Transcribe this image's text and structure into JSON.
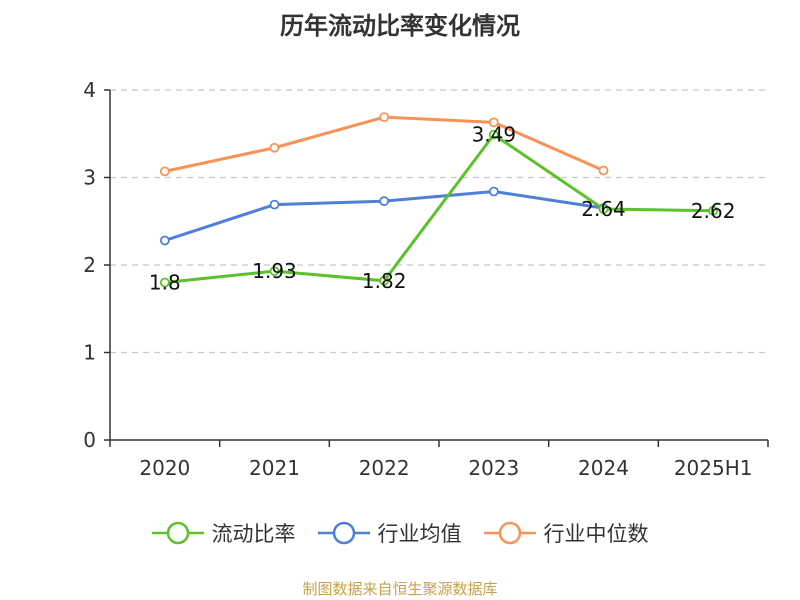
{
  "chart_data": {
    "type": "line",
    "title": "历年流动比率变化情况",
    "categories": [
      "2020",
      "2021",
      "2022",
      "2023",
      "2024",
      "2025H1"
    ],
    "ylim": [
      0,
      4
    ],
    "yticks": [
      "0",
      "1",
      "2",
      "3",
      "4"
    ],
    "grid": "horizontal dashed",
    "legend_position": "bottom",
    "series": [
      {
        "name": "流动比率",
        "color": "#5cc12a",
        "values": [
          1.8,
          1.93,
          1.82,
          3.49,
          2.64,
          2.62
        ],
        "labels": [
          "1.8",
          "1.93",
          "1.82",
          "3.49",
          "2.64",
          "2.62"
        ]
      },
      {
        "name": "行业均值",
        "color": "#4e7fd9",
        "values": [
          2.28,
          2.69,
          2.73,
          2.84,
          2.65,
          null
        ]
      },
      {
        "name": "行业中位数",
        "color": "#f79357",
        "values": [
          3.07,
          3.34,
          3.69,
          3.63,
          3.08,
          null
        ]
      }
    ]
  },
  "source_note": "制图数据来自恒生聚源数据库"
}
